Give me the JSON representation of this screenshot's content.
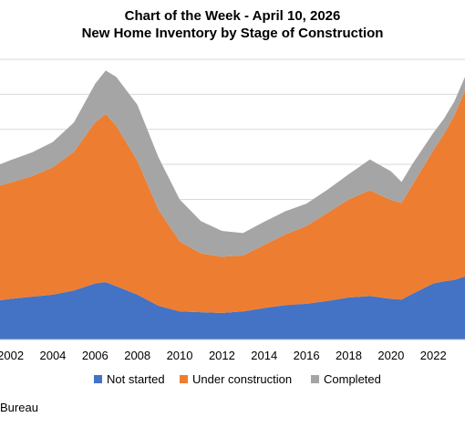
{
  "chart_data": {
    "type": "area",
    "stacked": true,
    "title": "Chart of the Week - April 10, 2026",
    "subtitle": "New Home Inventory by Stage of Construction",
    "x_ticks": [
      "2002",
      "2004",
      "2006",
      "2008",
      "2010",
      "2012",
      "2014",
      "2016",
      "2018",
      "2020",
      "2022"
    ],
    "xlim": [
      2001.5,
      2023.5
    ],
    "ylim": [
      0,
      400
    ],
    "y_gridlines": [
      50,
      100,
      150,
      200,
      250,
      300,
      350,
      400
    ],
    "grid": true,
    "legend_position": "bottom",
    "x": [
      2001.5,
      2002,
      2003,
      2004,
      2005,
      2006,
      2006.5,
      2007,
      2008,
      2009,
      2010,
      2011,
      2012,
      2013,
      2014,
      2015,
      2016,
      2017,
      2018,
      2019,
      2020,
      2020.5,
      2021,
      2022,
      2022.5,
      2023,
      2023.5
    ],
    "series": [
      {
        "name": "Not started",
        "color": "#4472c4",
        "values": [
          56,
          58,
          61,
          64,
          70,
          80,
          82,
          76,
          64,
          48,
          40,
          39,
          38,
          40,
          45,
          49,
          51,
          55,
          60,
          62,
          58,
          57,
          65,
          80,
          83,
          85,
          90
        ]
      },
      {
        "name": "Under construction",
        "color": "#ed7d31",
        "values": [
          164,
          166,
          172,
          182,
          198,
          230,
          240,
          229,
          191,
          137,
          100,
          84,
          80,
          80,
          90,
          101,
          111,
          126,
          140,
          151,
          141,
          138,
          155,
          190,
          210,
          235,
          265
        ]
      },
      {
        "name": "Completed",
        "color": "#a5a5a5",
        "values": [
          30,
          32,
          34,
          36,
          42,
          55,
          62,
          70,
          80,
          75,
          60,
          46,
          37,
          32,
          33,
          33,
          32,
          33,
          36,
          44,
          41,
          30,
          30,
          25,
          22,
          20,
          20
        ]
      }
    ]
  },
  "source": "Bureau"
}
